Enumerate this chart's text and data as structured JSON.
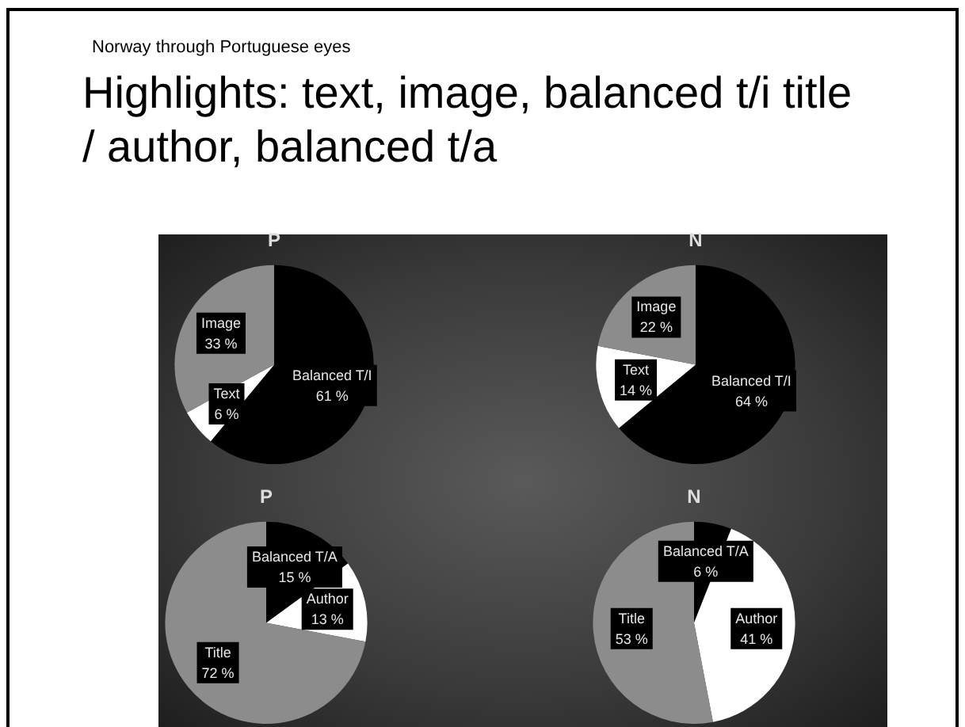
{
  "chart_data": [
    {
      "type": "other",
      "title": "Highlights: text, image, balanced t/i title / author, balanced t/a",
      "subtitle": "Norway through Portuguese eyes"
    },
    {
      "type": "pie",
      "title": "P",
      "categories": [
        "Balanced T/I",
        "Text",
        "Image"
      ],
      "values": [
        61,
        6,
        33
      ],
      "colors": [
        "#000000",
        "#ffffff",
        "#8c8c8c"
      ],
      "value_labels": [
        "61 %",
        "6 %",
        "33 %"
      ]
    },
    {
      "type": "pie",
      "title": "N",
      "categories": [
        "Balanced T/I",
        "Text",
        "Image"
      ],
      "values": [
        64,
        14,
        22
      ],
      "colors": [
        "#000000",
        "#ffffff",
        "#8c8c8c"
      ],
      "value_labels": [
        "64 %",
        "14 %",
        "22 %"
      ]
    },
    {
      "type": "pie",
      "title": "P",
      "categories": [
        "Balanced T/A",
        "Author",
        "Title"
      ],
      "values": [
        15,
        13,
        72
      ],
      "colors": [
        "#000000",
        "#ffffff",
        "#8c8c8c"
      ],
      "value_labels": [
        "15 %",
        "13 %",
        "72 %"
      ]
    },
    {
      "type": "pie",
      "title": "N",
      "categories": [
        "Balanced T/A",
        "Author",
        "Title"
      ],
      "values": [
        6,
        41,
        53
      ],
      "colors": [
        "#000000",
        "#ffffff",
        "#8c8c8c"
      ],
      "value_labels": [
        "6 %",
        "41 %",
        "53 %"
      ]
    }
  ]
}
